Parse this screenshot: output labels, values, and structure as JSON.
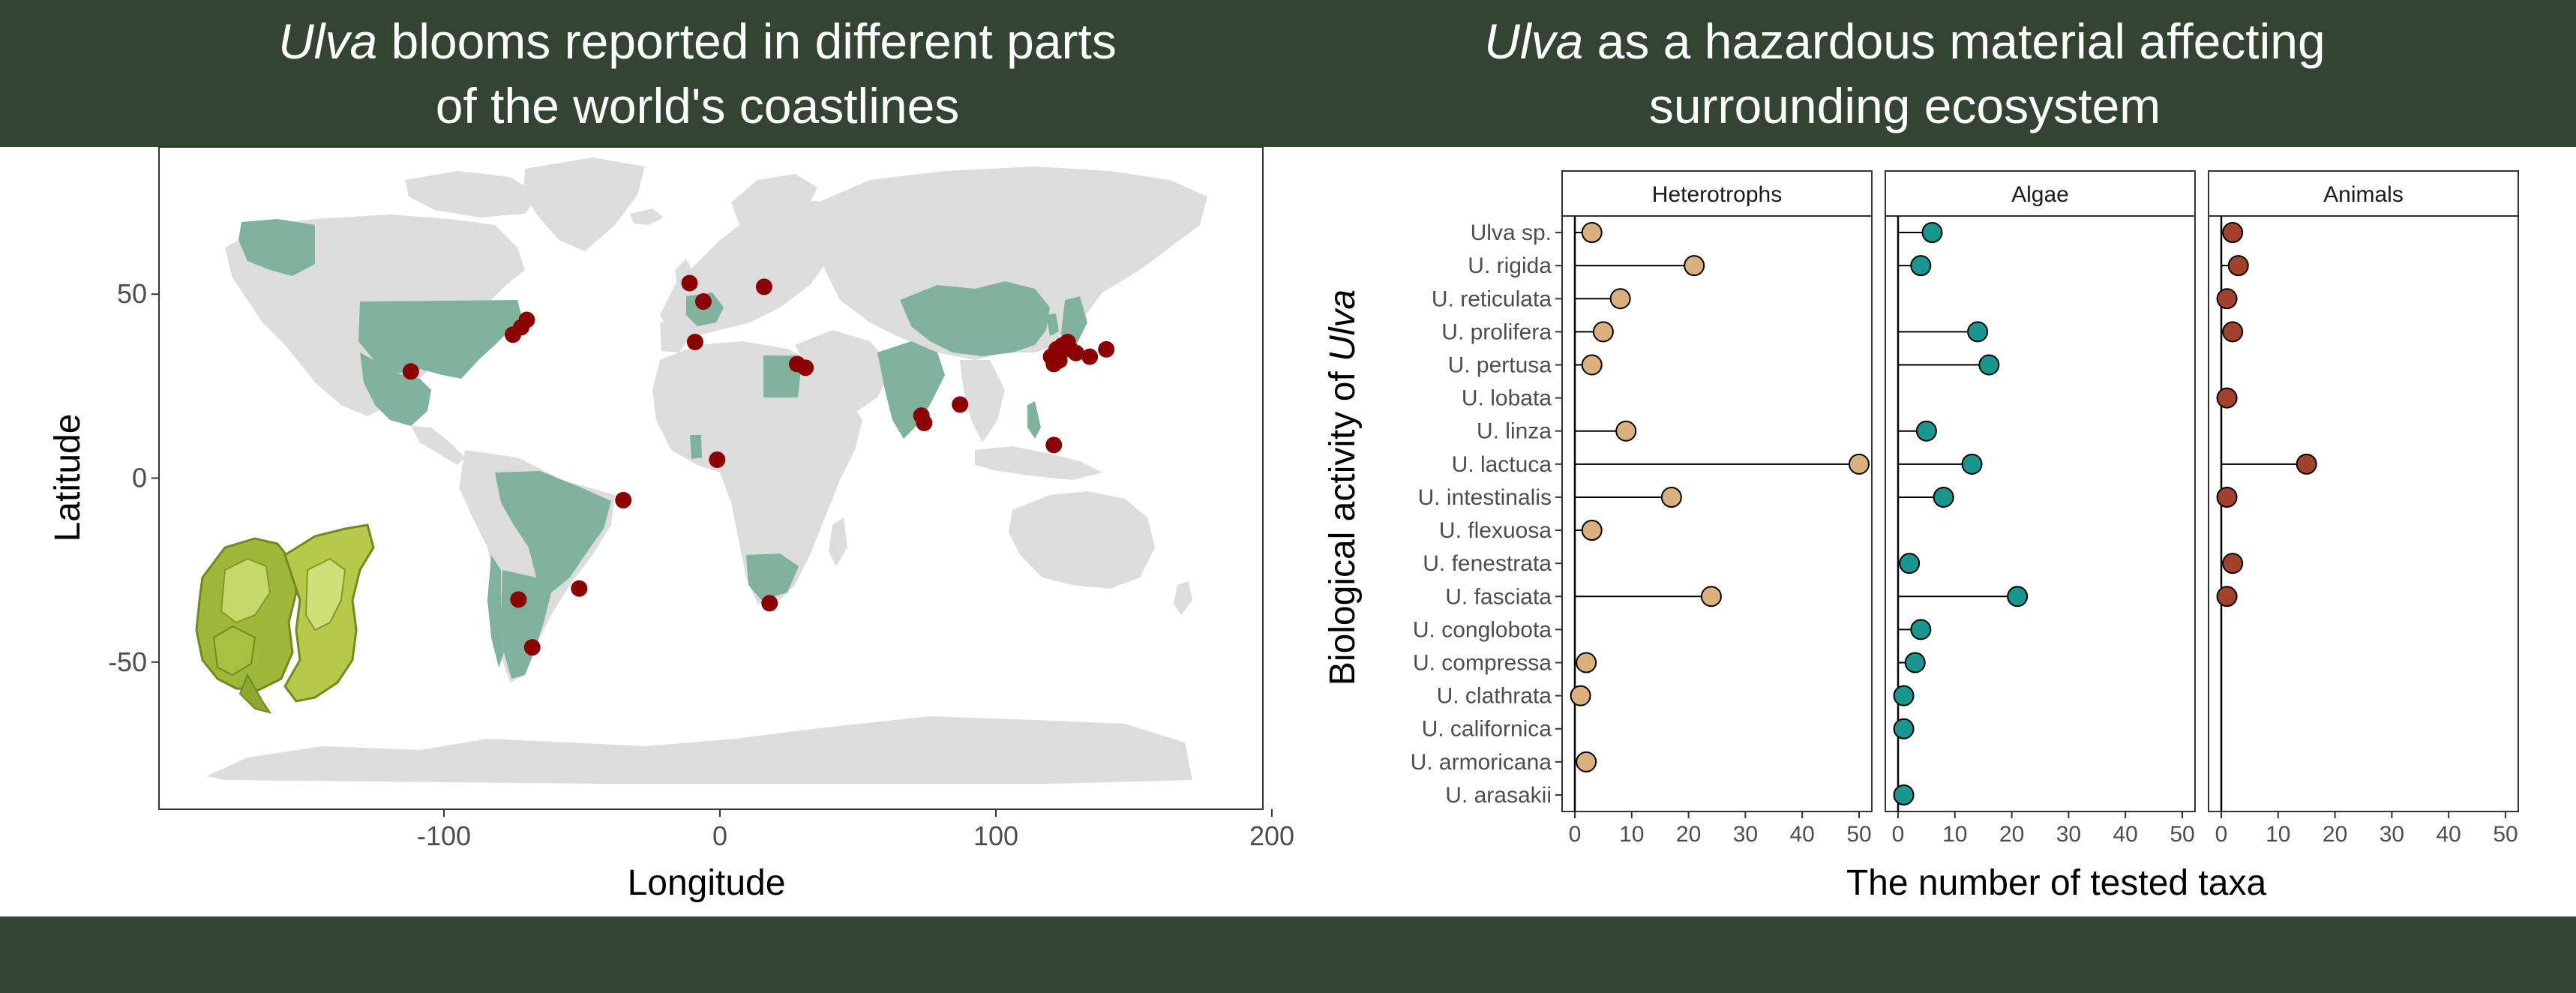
{
  "titles": {
    "left": {
      "italic": "Ulva",
      "rest": " blooms reported in different parts",
      "line2": "of the world's coastlines"
    },
    "right": {
      "italic": "Ulva",
      "rest": " as a hazardous material affecting",
      "line2": "surrounding ecosystem"
    }
  },
  "colors": {
    "band": "#334432",
    "land": "#dcdcdc",
    "bloom_country": "#7fb29c",
    "bloom_point": "#8b0000",
    "heterotrophs": "#d9b07e",
    "algae": "#1a9690",
    "animals": "#a3402e"
  },
  "chart_data": [
    {
      "type": "scatter",
      "description_kind": "map",
      "xlabel": "Longitude",
      "ylabel": "Latitude",
      "xlim": [
        -200,
        200
      ],
      "ylim": [
        -90,
        90
      ],
      "xticks": [
        -100,
        0,
        100,
        200
      ],
      "yticks": [
        50,
        0,
        -50
      ],
      "grid": false,
      "points": [
        {
          "lon": -112,
          "lat": 29
        },
        {
          "lon": -75,
          "lat": 39
        },
        {
          "lon": -72,
          "lat": 41
        },
        {
          "lon": -70,
          "lat": 43
        },
        {
          "lon": -35,
          "lat": -6
        },
        {
          "lon": -73,
          "lat": -33
        },
        {
          "lon": -51,
          "lat": -30
        },
        {
          "lon": -68,
          "lat": -46
        },
        {
          "lon": -11,
          "lat": 53
        },
        {
          "lon": -6,
          "lat": 48
        },
        {
          "lon": -9,
          "lat": 37
        },
        {
          "lon": 16,
          "lat": 52
        },
        {
          "lon": 28,
          "lat": 31
        },
        {
          "lon": 31,
          "lat": 30
        },
        {
          "lon": -1,
          "lat": 5
        },
        {
          "lon": 18,
          "lat": -34
        },
        {
          "lon": 73,
          "lat": 17
        },
        {
          "lon": 74,
          "lat": 15
        },
        {
          "lon": 87,
          "lat": 20
        },
        {
          "lon": 121,
          "lat": 9
        },
        {
          "lon": 120,
          "lat": 33
        },
        {
          "lon": 121,
          "lat": 31
        },
        {
          "lon": 122,
          "lat": 35
        },
        {
          "lon": 123,
          "lat": 32
        },
        {
          "lon": 124,
          "lat": 36
        },
        {
          "lon": 126,
          "lat": 37
        },
        {
          "lon": 127,
          "lat": 35
        },
        {
          "lon": 129,
          "lat": 34
        },
        {
          "lon": 134,
          "lat": 33
        },
        {
          "lon": 140,
          "lat": 35
        }
      ]
    },
    {
      "type": "scatter",
      "description_kind": "lollipop",
      "xlabel": "The number of tested taxa",
      "ylabel_italic": "Ulva",
      "ylabel_prefix": "Biological activity of ",
      "xlim": [
        0,
        50
      ],
      "xticks": [
        0,
        10,
        20,
        30,
        40,
        50
      ],
      "categories": [
        "Ulva sp.",
        "U. rigida",
        "U. reticulata",
        "U. prolifera",
        "U. pertusa",
        "U. lobata",
        "U. linza",
        "U. lactuca",
        "U. intestinalis",
        "U. flexuosa",
        "U. fenestrata",
        "U. fasciata",
        "U. conglobota",
        "U. compressa",
        "U. clathrata",
        "U. californica",
        "U. armoricana",
        "U. arasakii"
      ],
      "series": [
        {
          "name": "Heterotrophs",
          "values": [
            3,
            21,
            8,
            5,
            3,
            null,
            9,
            50,
            17,
            3,
            null,
            24,
            null,
            2,
            1,
            null,
            2,
            null
          ]
        },
        {
          "name": "Algae",
          "values": [
            6,
            4,
            null,
            14,
            16,
            null,
            5,
            13,
            8,
            null,
            2,
            21,
            4,
            3,
            1,
            1,
            null,
            1
          ]
        },
        {
          "name": "Animals",
          "values": [
            2,
            3,
            1,
            2,
            null,
            1,
            null,
            15,
            1,
            null,
            2,
            1,
            null,
            null,
            null,
            null,
            null,
            null
          ]
        }
      ]
    }
  ]
}
